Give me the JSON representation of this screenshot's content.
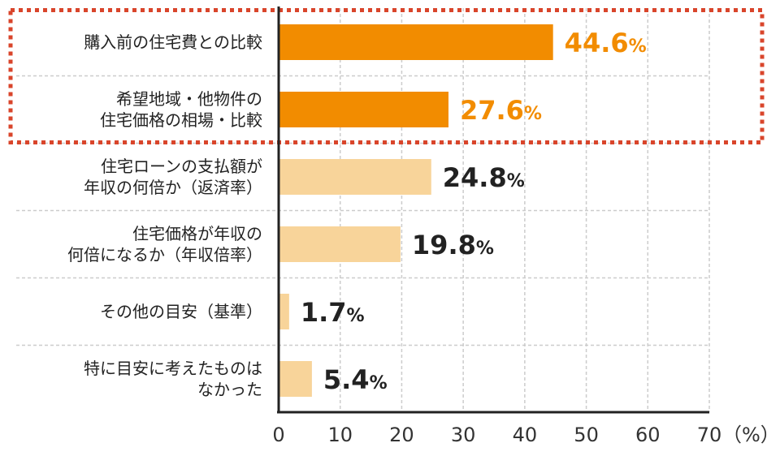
{
  "chart_data": {
    "type": "bar",
    "orientation": "horizontal",
    "categories": [
      [
        "購入前の住宅費との比較"
      ],
      [
        "希望地域・他物件の",
        "住宅価格の相場・比較"
      ],
      [
        "住宅ローンの支払額が",
        "年収の何倍か（返済率）"
      ],
      [
        "住宅価格が年収の",
        "何倍になるか（年収倍率）"
      ],
      [
        "その他の目安（基準）"
      ],
      [
        "特に目安に考えたものは",
        "なかった"
      ]
    ],
    "values": [
      44.6,
      27.6,
      24.8,
      19.8,
      1.7,
      5.4
    ],
    "value_labels": [
      "44.6",
      "27.6",
      "24.8",
      "19.8",
      "1.7",
      "5.4"
    ],
    "value_unit": "%",
    "highlighted": [
      true,
      true,
      false,
      false,
      false,
      false
    ],
    "xlim": [
      0,
      70
    ],
    "xticks": [
      0,
      10,
      20,
      30,
      40,
      50,
      60,
      70
    ],
    "xticklabels": [
      "0",
      "10",
      "20",
      "30",
      "40",
      "50",
      "60",
      "70"
    ],
    "x_unit_label": "（%）",
    "grid": "vertical dashed",
    "colors": {
      "highlight_bar": "#f28c00",
      "normal_bar": "#f8d49a",
      "highlight_text": "#f28c00",
      "normal_text": "#222222",
      "highlight_box": "#d9452b",
      "grid": "#cccccc",
      "axis": "#222222"
    }
  }
}
